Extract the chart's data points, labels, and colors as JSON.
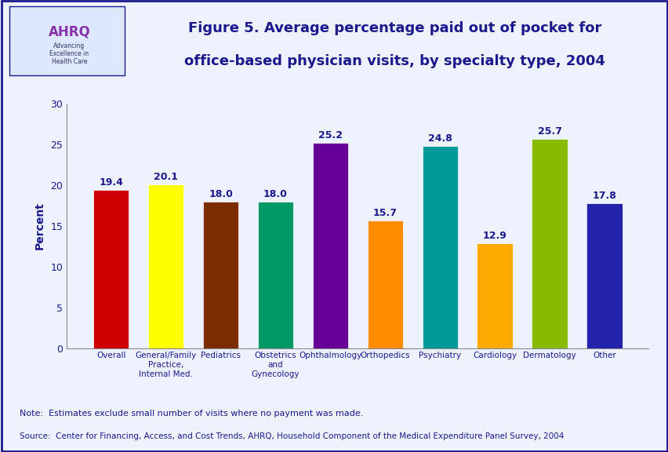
{
  "categories": [
    "Overall",
    "General/Family\nPractice,\nInternal Med.",
    "Pediatrics",
    "Obstetrics\nand\nGynecology",
    "Ophthalmology",
    "Orthopedics",
    "Psychiatry",
    "Cardiology",
    "Dermatology",
    "Other"
  ],
  "values": [
    19.4,
    20.1,
    18.0,
    18.0,
    25.2,
    15.7,
    24.8,
    12.9,
    25.7,
    17.8
  ],
  "bar_colors": [
    "#cc0000",
    "#ffff00",
    "#7b2d00",
    "#009966",
    "#660099",
    "#ff8c00",
    "#009999",
    "#ffaa00",
    "#88bb00",
    "#2222aa"
  ],
  "title_line1": "Figure 5. Average percentage paid out of pocket for",
  "title_line2": "office-based physician visits, by specialty type, 2004",
  "ylabel": "Percent",
  "ylim": [
    0,
    30
  ],
  "yticks": [
    0,
    5,
    10,
    15,
    20,
    25,
    30
  ],
  "note_line1": "Note:  Estimates exclude small number of visits where no payment was made.",
  "note_line2": "Source:  Center for Financing, Access, and Cost Trends, AHRQ, Household Component of the Medical Expenditure Panel Survey, 2004",
  "title_color": "#1a1a8c",
  "axis_label_color": "#1a1a8c",
  "tick_label_color": "#1a1a8c",
  "value_label_color": "#1a1a8c",
  "note_color": "#1a1a8c",
  "background_color": "#eef2ff",
  "header_bg_color": "#ffffff",
  "border_color": "#1a1a8c"
}
